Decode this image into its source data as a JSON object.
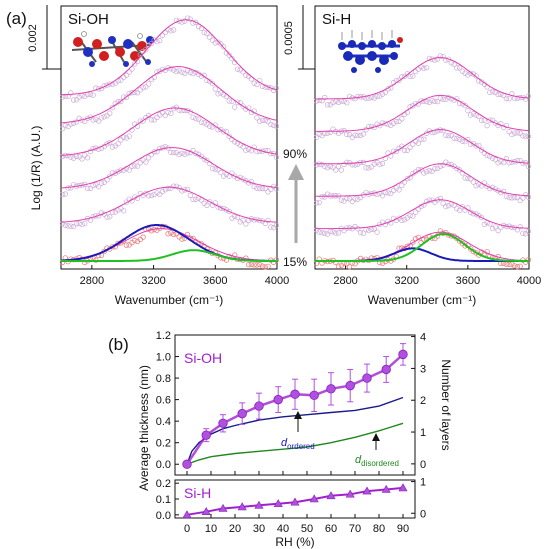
{
  "figure": {
    "panel_a_label": "(a)",
    "panel_b_label": "(b)",
    "rh_low_label": "15%",
    "rh_high_label": "90%"
  },
  "colors": {
    "magenta": "#e040b0",
    "data_pink": "#c9a8d4",
    "data_red": "#e87070",
    "blue": "#1a1ab8",
    "green": "#20c020",
    "purple": "#a020d0",
    "navy": "#1a1a8c",
    "dark_green": "#208820",
    "marker": "#b050e0",
    "arrow_grey": "#a8a8a8"
  },
  "chart_data": [
    {
      "type": "line",
      "panel": "a-left",
      "label": "Si-OH",
      "xlabel": "Wavenumber (cm⁻¹)",
      "ylabel": "Log (1/R) (A.U.)",
      "scale_bar": "0.002",
      "xlim": [
        2600,
        4000
      ],
      "xticks": [
        "2800",
        "3200",
        "3600",
        "4000"
      ],
      "traces": [
        {
          "offset": 0.0,
          "peak_x": 3250,
          "peak_h": 0.18,
          "width": 240
        },
        {
          "offset": 0.21,
          "peak_x": 3300,
          "peak_h": 0.2,
          "width": 260
        },
        {
          "offset": 0.4,
          "peak_x": 3320,
          "peak_h": 0.23,
          "width": 265
        },
        {
          "offset": 0.58,
          "peak_x": 3340,
          "peak_h": 0.27,
          "width": 270
        },
        {
          "offset": 0.76,
          "peak_x": 3360,
          "peak_h": 0.32,
          "width": 275
        },
        {
          "offset": 0.92,
          "peak_x": 3410,
          "peak_h": 0.42,
          "width": 255
        }
      ],
      "components": [
        {
          "name": "ordered",
          "color": "#1a1ab8",
          "peak_x": 3220,
          "peak_h": 0.2,
          "width": 210
        },
        {
          "name": "disordered",
          "color": "#20c020",
          "peak_x": 3460,
          "peak_h": 0.06,
          "width": 140
        }
      ]
    },
    {
      "type": "line",
      "panel": "a-right",
      "label": "Si-H",
      "xlabel": "Wavenumber (cm⁻¹)",
      "scale_bar": "0.0005",
      "xlim": [
        2600,
        4000
      ],
      "xticks": [
        "2800",
        "3200",
        "3600",
        "4000"
      ],
      "traces": [
        {
          "offset": 0.0,
          "peak_x": 3420,
          "peak_h": 0.16,
          "width": 190
        },
        {
          "offset": 0.18,
          "peak_x": 3420,
          "peak_h": 0.16,
          "width": 195
        },
        {
          "offset": 0.36,
          "peak_x": 3420,
          "peak_h": 0.18,
          "width": 200
        },
        {
          "offset": 0.54,
          "peak_x": 3420,
          "peak_h": 0.19,
          "width": 205
        },
        {
          "offset": 0.72,
          "peak_x": 3420,
          "peak_h": 0.2,
          "width": 210
        },
        {
          "offset": 0.9,
          "peak_x": 3420,
          "peak_h": 0.23,
          "width": 210
        }
      ],
      "components": [
        {
          "name": "ordered",
          "color": "#1a1ab8",
          "peak_x": 3240,
          "peak_h": 0.07,
          "width": 120
        },
        {
          "name": "disordered",
          "color": "#20c020",
          "peak_x": 3440,
          "peak_h": 0.15,
          "width": 140
        }
      ]
    },
    {
      "type": "line",
      "panel": "b-top",
      "label": "Si-OH",
      "ylabel": "Average thickness (nm)",
      "y2label": "Number of layers",
      "xlim": [
        -5,
        95
      ],
      "ylim": [
        -0.1,
        1.2
      ],
      "y2lim": [
        -0.35,
        4.05
      ],
      "yticks": [
        "0.0",
        "0.2",
        "0.4",
        "0.6",
        "0.8",
        "1.0",
        "1.2"
      ],
      "y2ticks": [
        "0",
        "1",
        "2",
        "3",
        "4"
      ],
      "thickness": {
        "x": [
          0,
          8,
          15,
          23,
          30,
          38,
          45,
          53,
          60,
          68,
          75,
          83,
          90
        ],
        "y": [
          0.0,
          0.27,
          0.38,
          0.47,
          0.54,
          0.6,
          0.65,
          0.64,
          0.7,
          0.73,
          0.8,
          0.88,
          1.02
        ],
        "err": [
          0.02,
          0.06,
          0.08,
          0.1,
          0.12,
          0.12,
          0.14,
          0.15,
          0.15,
          0.15,
          0.13,
          0.12,
          0.1
        ]
      },
      "ordered_curve": {
        "x": [
          0,
          2,
          5,
          10,
          15,
          20,
          30,
          40,
          50,
          60,
          70,
          80,
          90
        ],
        "y": [
          0.0,
          0.12,
          0.2,
          0.28,
          0.33,
          0.36,
          0.41,
          0.44,
          0.46,
          0.48,
          0.5,
          0.54,
          0.62
        ]
      },
      "disordered_curve": {
        "x": [
          0,
          5,
          10,
          20,
          30,
          40,
          50,
          60,
          70,
          80,
          90
        ],
        "y": [
          0.0,
          0.04,
          0.07,
          0.1,
          0.12,
          0.14,
          0.16,
          0.2,
          0.25,
          0.31,
          0.38
        ]
      },
      "annotations": {
        "ordered": {
          "symbol": "d",
          "subscript": "ordered"
        },
        "disordered": {
          "symbol": "d",
          "subscript": "disordered"
        }
      }
    },
    {
      "type": "line",
      "panel": "b-bottom",
      "label": "Si-H",
      "xlabel": "RH (%)",
      "xlim": [
        -5,
        95
      ],
      "ylim": [
        -0.02,
        0.22
      ],
      "y2lim": [
        -0.15,
        1.05
      ],
      "yticks": [
        "0.0",
        "0.1",
        "0.2"
      ],
      "y2ticks": [
        "0",
        "1"
      ],
      "xticks": [
        "0",
        "10",
        "20",
        "30",
        "40",
        "50",
        "60",
        "70",
        "80",
        "90"
      ],
      "thickness": {
        "x": [
          0,
          8,
          15,
          23,
          30,
          38,
          45,
          53,
          60,
          68,
          75,
          83,
          90
        ],
        "y": [
          0.0,
          0.02,
          0.04,
          0.05,
          0.06,
          0.07,
          0.08,
          0.1,
          0.12,
          0.13,
          0.15,
          0.16,
          0.17
        ]
      }
    }
  ]
}
